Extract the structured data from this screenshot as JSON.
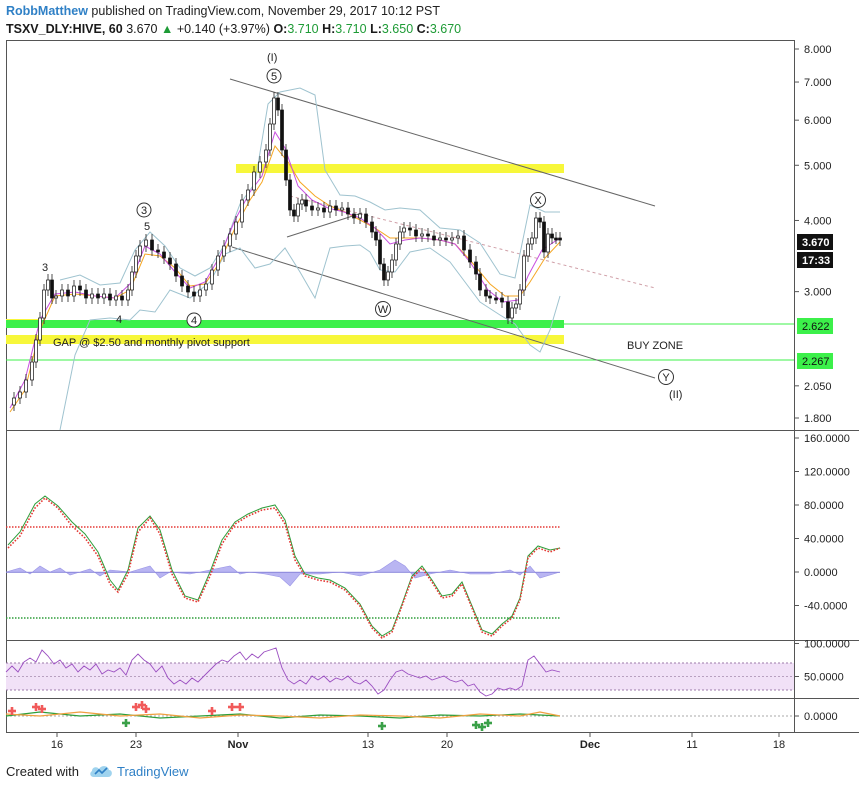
{
  "header": {
    "author": "RobbMatthew",
    "published": "published on TradingView.com, November 29, 2017 10:12 PST",
    "symbol": "TSXV_DLY:HIVE, 60",
    "last": "3.670",
    "change": "+0.140 (+3.97%)",
    "o_label": "O:",
    "o": "3.710",
    "h_label": "H:",
    "h": "3.710",
    "l_label": "L:",
    "l": "3.650",
    "c_label": "C:",
    "c": "3.670"
  },
  "footer": {
    "created": "Created with",
    "brand": "TradingView"
  },
  "chart_data": {
    "type": "line",
    "price_axis": {
      "ticks": [
        "8.000",
        "7.000",
        "6.000",
        "5.000",
        "4.000",
        "3.000",
        "2.050",
        "1.800"
      ],
      "log_scale": true
    },
    "osc_axis": {
      "ticks": [
        "160.0000",
        "120.0000",
        "80.0000",
        "40.0000",
        "0.0000",
        "-40.0000"
      ]
    },
    "rsi_axis": {
      "ticks": [
        "100.0000",
        "50.0000"
      ]
    },
    "vol_axis": {
      "ticks": [
        "0.0000"
      ]
    },
    "x_ticks": [
      "16",
      "23",
      "Nov",
      "13",
      "20",
      "Dec",
      "11",
      "18"
    ],
    "price_labels": [
      {
        "text": "3.670",
        "style": "dark"
      },
      {
        "text": "17:33",
        "style": "dark"
      },
      {
        "text": "2.622",
        "style": "green"
      },
      {
        "text": "2.267",
        "style": "green"
      }
    ],
    "annotations": {
      "wave_i": "(I)",
      "wave_ii": "(II)",
      "c5": "5",
      "c3": "3",
      "c4": "4",
      "cW": "W",
      "cX": "X",
      "cY": "Y",
      "n3": "3",
      "n5": "5",
      "n4": "4",
      "gap": "GAP @ $2.50 and monthly pivot support",
      "buy": "BUY ZONE"
    },
    "key_levels": [
      2.622,
      2.267
    ],
    "colors": {
      "green_zone": "#3cf04a",
      "yellow_zone": "#f7f73a",
      "ema_orange": "#f5a623",
      "ma_purple": "#c94fe0",
      "band": "#9fc3cf"
    }
  }
}
